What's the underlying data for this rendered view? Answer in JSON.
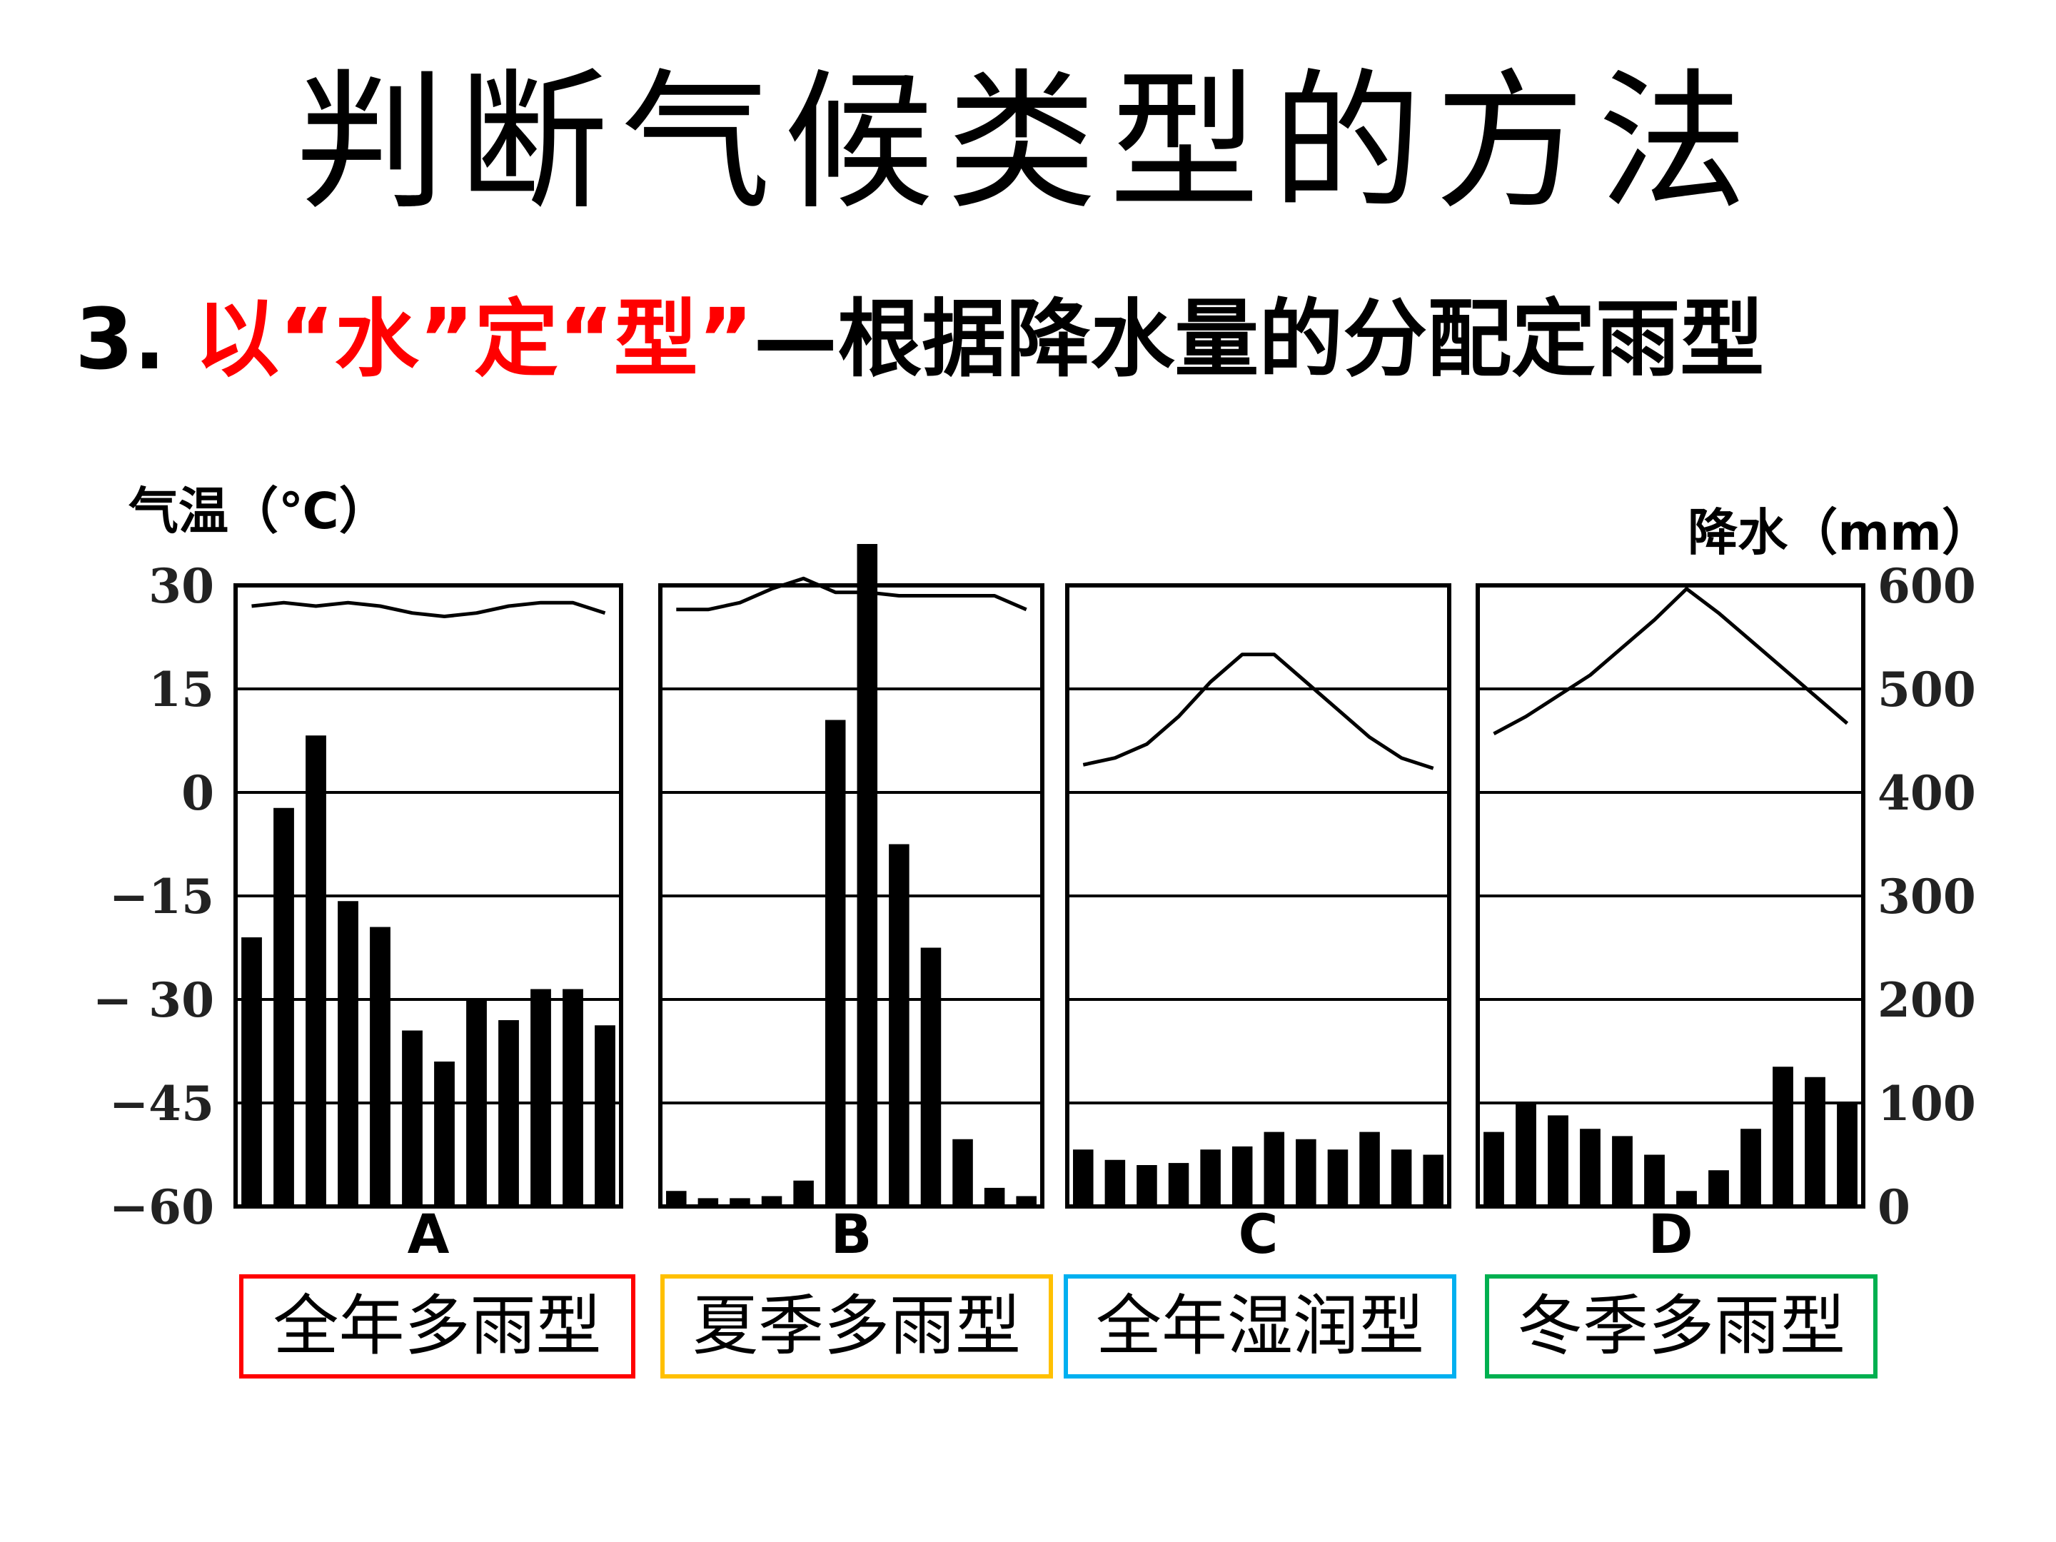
{
  "slide": {
    "title": "判断气候类型的方法",
    "subtitle": {
      "prefix": "3. ",
      "highlight": "以“水”定“型”",
      "rest": "—根据降水量的分配定雨型"
    }
  },
  "chart_data": {
    "type": "bar",
    "temp_axis": {
      "label": "气温（℃）",
      "ticks": [
        "30",
        "15",
        "0",
        "−15",
        "− 30",
        "−45",
        "−60"
      ],
      "ylim": [
        -60,
        30
      ]
    },
    "precip_axis": {
      "label": "降水（mm）",
      "ticks": [
        "600",
        "500",
        "400",
        "300",
        "200",
        "100",
        "0"
      ],
      "ylim": [
        0,
        600
      ]
    },
    "grid": true,
    "panels": [
      {
        "label": "A",
        "type_label": "全年多雨型",
        "precipitation": [
          260,
          385,
          455,
          295,
          270,
          170,
          140,
          200,
          180,
          210,
          210,
          175
        ],
        "temperature": [
          27,
          27.5,
          27,
          27.5,
          27,
          26,
          25.5,
          26,
          27,
          27.5,
          27.5,
          26
        ]
      },
      {
        "label": "B",
        "type_label": "夏季多雨型",
        "precipitation": [
          15,
          8,
          8,
          10,
          25,
          470,
          640,
          350,
          250,
          65,
          18,
          10
        ],
        "temperature": [
          26.5,
          26.5,
          27.5,
          29.5,
          31,
          29,
          29,
          28.5,
          28.5,
          28.5,
          28.5,
          26.5
        ]
      },
      {
        "label": "C",
        "type_label": "全年湿润型",
        "precipitation": [
          55,
          45,
          40,
          42,
          55,
          58,
          72,
          65,
          55,
          72,
          55,
          50
        ],
        "temperature": [
          4,
          5,
          7,
          11,
          16,
          20,
          20,
          16,
          12,
          8,
          5,
          3.5
        ]
      },
      {
        "label": "D",
        "type_label": "冬季多雨型",
        "precipitation": [
          72,
          100,
          88,
          75,
          68,
          50,
          15,
          35,
          75,
          135,
          125,
          100
        ],
        "temperature": [
          8.5,
          11,
          14,
          17,
          21,
          25,
          29.5,
          26,
          22,
          18,
          14,
          10
        ]
      }
    ]
  },
  "box_colors": [
    "#ff0000",
    "#ffc000",
    "#00b0f0",
    "#00b050"
  ]
}
